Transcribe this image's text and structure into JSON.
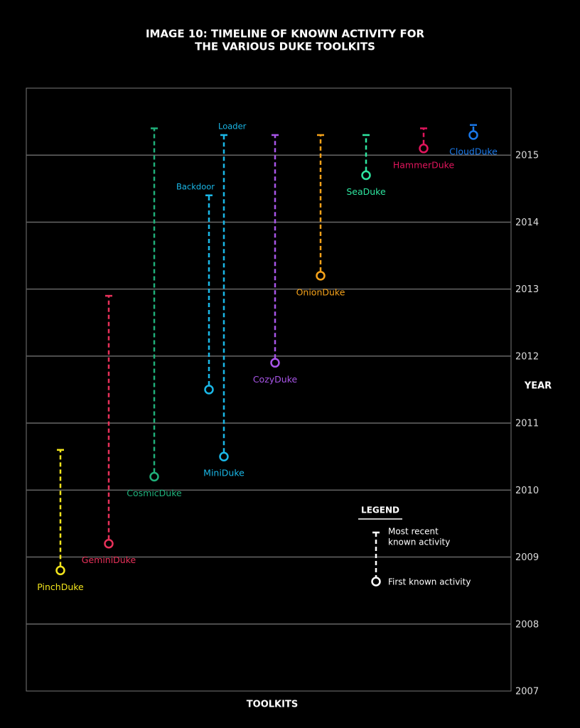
{
  "chart_data": {
    "type": "range",
    "title": [
      "IMAGE 10: TIMELINE OF KNOWN ACTIVITY FOR",
      "THE VARIOUS DUKE TOOLKITS"
    ],
    "x_label": "TOOLKITS",
    "y_label": "YEAR",
    "ylim": [
      2007,
      2016
    ],
    "yticks": [
      2007,
      2008,
      2009,
      2010,
      2011,
      2012,
      2013,
      2014,
      2015
    ],
    "grid": true,
    "series": [
      {
        "name": "PinchDuke",
        "color": "#f2e41c",
        "start": 2008.8,
        "end": 2010.6
      },
      {
        "name": "GeminiDuke",
        "color": "#e8315a",
        "start": 2009.2,
        "end": 2012.9
      },
      {
        "name": "CosmicDuke",
        "color": "#1fb07a",
        "start": 2010.2,
        "end": 2015.4
      },
      {
        "part": "Backdoor",
        "color": "#1ab8e8",
        "start": 2011.5,
        "end": 2014.4
      },
      {
        "name": "MiniDuke",
        "part": "Loader",
        "color": "#1ab8e8",
        "start": 2010.5,
        "end": 2015.3
      },
      {
        "name": "CozyDuke",
        "color": "#a855e8",
        "start": 2011.9,
        "end": 2015.3
      },
      {
        "name": "OnionDuke",
        "color": "#f5a21a",
        "start": 2013.2,
        "end": 2015.3
      },
      {
        "name": "SeaDuke",
        "color": "#2ee6a0",
        "start": 2014.7,
        "end": 2015.3
      },
      {
        "name": "HammerDuke",
        "color": "#e0155c",
        "start": 2015.1,
        "end": 2015.4
      },
      {
        "name": "CloudDuke",
        "color": "#1a78e8",
        "start": 2015.3,
        "end": 2015.45
      }
    ],
    "legend": {
      "title": "LEGEND",
      "end_label": [
        "Most recent",
        "known activity"
      ],
      "start_label": "First known activity"
    }
  }
}
